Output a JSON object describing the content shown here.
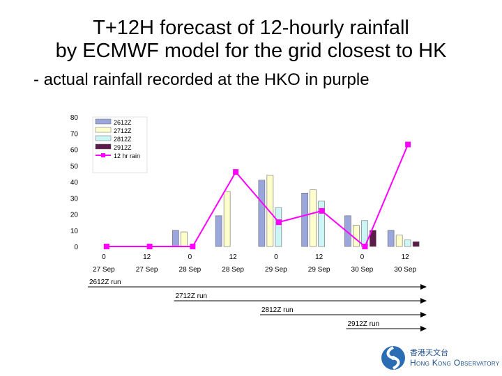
{
  "title": {
    "line1": "T+12H forecast of 12-hourly rainfall",
    "line2": "by ECMWF model for the grid closest to HK",
    "line3": "- actual rainfall recorded at the HKO in purple"
  },
  "logo": {
    "name_zh": "香港天文台",
    "name_en": "Hong Kong Observatory"
  },
  "chart_data": {
    "type": "bar",
    "title": "T+12H forecast of 12-hourly rainfall by ECMWF model for the grid closest to HK",
    "xlabel": "",
    "ylabel": "",
    "ylim": [
      0,
      80
    ],
    "yticks": [
      0,
      10,
      20,
      30,
      40,
      50,
      60,
      70,
      80
    ],
    "legend_position": "top-left",
    "categories": [
      {
        "hour": "0",
        "date": "27 Sep"
      },
      {
        "hour": "12",
        "date": "27 Sep"
      },
      {
        "hour": "0",
        "date": "28 Sep"
      },
      {
        "hour": "12",
        "date": "28 Sep"
      },
      {
        "hour": "0",
        "date": "29 Sep"
      },
      {
        "hour": "12",
        "date": "29 Sep"
      },
      {
        "hour": "0",
        "date": "30 Sep"
      },
      {
        "hour": "12",
        "date": "30 Sep"
      }
    ],
    "series": [
      {
        "name": "2612Z",
        "kind": "bar",
        "color": "#9aa6dc",
        "values": [
          0,
          0,
          10,
          19,
          41,
          33,
          19,
          10
        ]
      },
      {
        "name": "2712Z",
        "kind": "bar",
        "color": "#ffffcc",
        "values": [
          null,
          null,
          9,
          34,
          44,
          35,
          13,
          7
        ]
      },
      {
        "name": "2812Z",
        "kind": "bar",
        "color": "#ccf5f5",
        "values": [
          null,
          null,
          null,
          null,
          24,
          28,
          16,
          4
        ]
      },
      {
        "name": "2912Z",
        "kind": "bar",
        "color": "#5c1a4a",
        "values": [
          null,
          null,
          null,
          null,
          null,
          null,
          10,
          3
        ]
      },
      {
        "name": "12 hr rain",
        "kind": "line",
        "color": "#ff00ff",
        "values": [
          0,
          0,
          0,
          46,
          15,
          22,
          0,
          63
        ]
      }
    ],
    "runs": [
      {
        "label": "2612Z run",
        "start_index": 0
      },
      {
        "label": "2712Z run",
        "start_index": 2
      },
      {
        "label": "2812Z run",
        "start_index": 4
      },
      {
        "label": "2912Z run",
        "start_index": 6
      }
    ]
  }
}
